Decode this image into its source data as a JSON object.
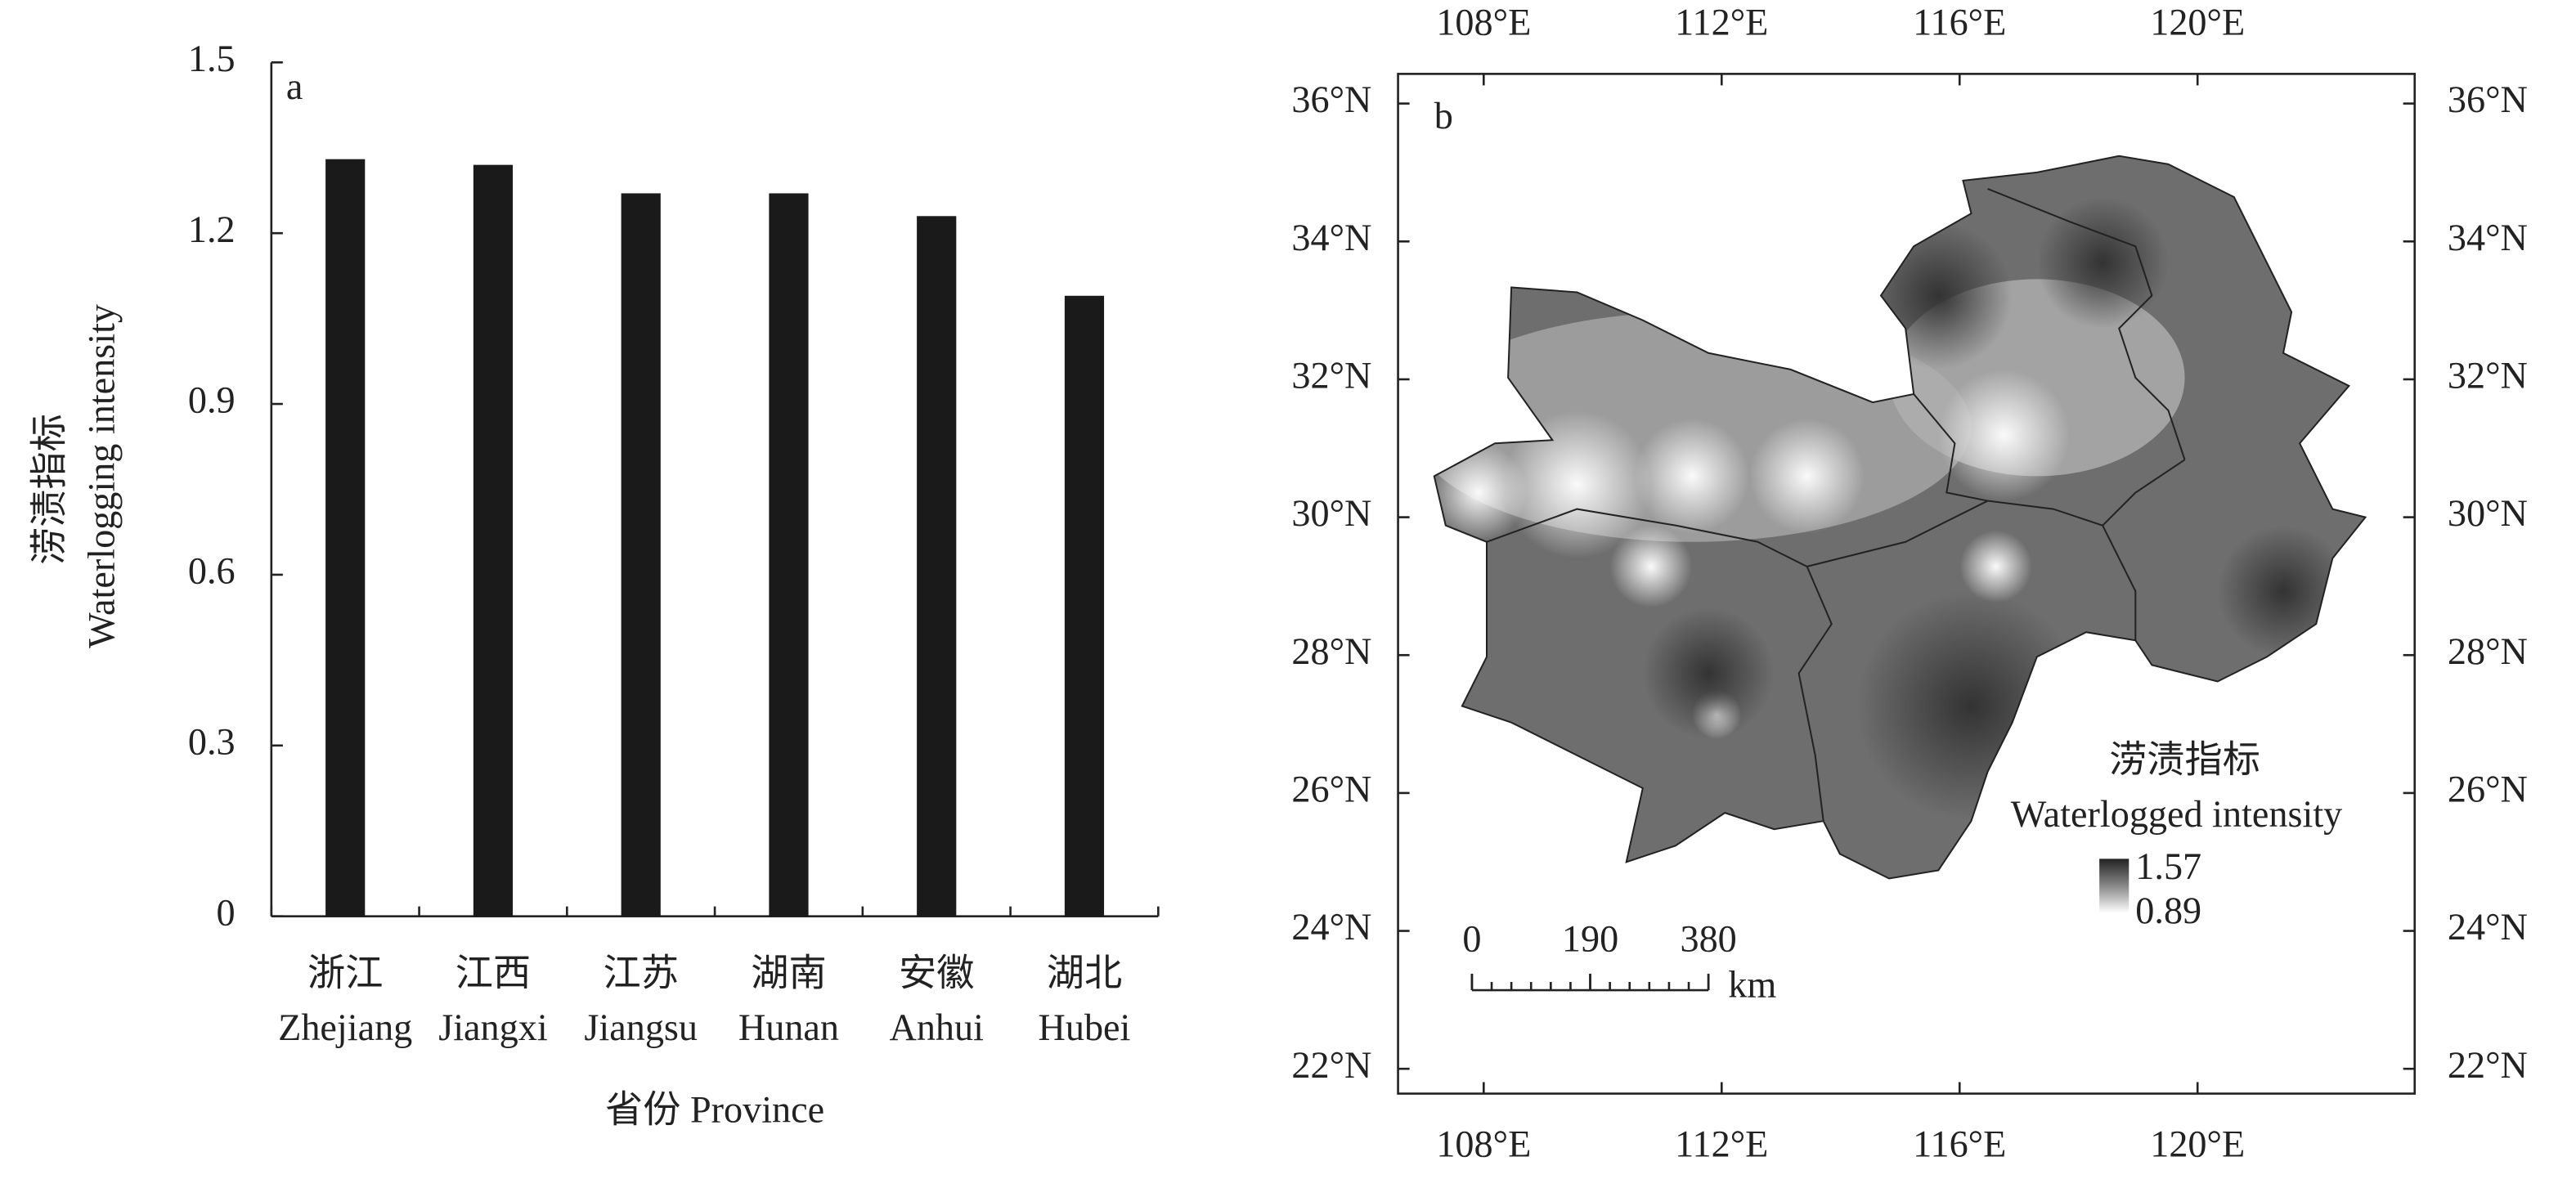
{
  "chart_data": [
    {
      "type": "bar",
      "panel_label": "a",
      "categories": [
        [
          "浙江",
          "Zhejiang"
        ],
        [
          "江西",
          "Jiangxi"
        ],
        [
          "江苏",
          "Jiangsu"
        ],
        [
          "湖南",
          "Hunan"
        ],
        [
          "安徽",
          "Anhui"
        ],
        [
          "湖北",
          "Hubei"
        ]
      ],
      "values": [
        1.33,
        1.32,
        1.27,
        1.27,
        1.23,
        1.09
      ],
      "color": "#1a1a1a",
      "ylim": [
        0,
        1.5
      ],
      "yticks": [
        0,
        0.3,
        0.6,
        0.9,
        1.2,
        1.5
      ],
      "ylabel": [
        "涝渍指标",
        "Waterlogging intensity"
      ],
      "xlabel": "省份 Province"
    },
    {
      "type": "map",
      "panel_label": "b",
      "xlim": [
        106.56,
        123.65
      ],
      "ylim": [
        21.64,
        36.43
      ],
      "xticks": [
        {
          "value": 108,
          "label": "108°E"
        },
        {
          "value": 112,
          "label": "112°E"
        },
        {
          "value": 116,
          "label": "116°E"
        },
        {
          "value": 120,
          "label": "120°E"
        }
      ],
      "yticks": [
        {
          "value": 22,
          "label": "22°N"
        },
        {
          "value": 24,
          "label": "24°N"
        },
        {
          "value": 26,
          "label": "26°N"
        },
        {
          "value": 28,
          "label": "28°N"
        },
        {
          "value": 30,
          "label": "30°N"
        },
        {
          "value": 32,
          "label": "32°N"
        },
        {
          "value": 34,
          "label": "34°N"
        },
        {
          "value": 36,
          "label": "36°N"
        }
      ],
      "legend_title": [
        "涝渍指标",
        "Waterlogged intensity"
      ],
      "colorbar": {
        "max": 1.57,
        "min": 0.89
      },
      "scale_bar": {
        "ticks": [
          0,
          190,
          380
        ],
        "unit": "km"
      }
    }
  ]
}
